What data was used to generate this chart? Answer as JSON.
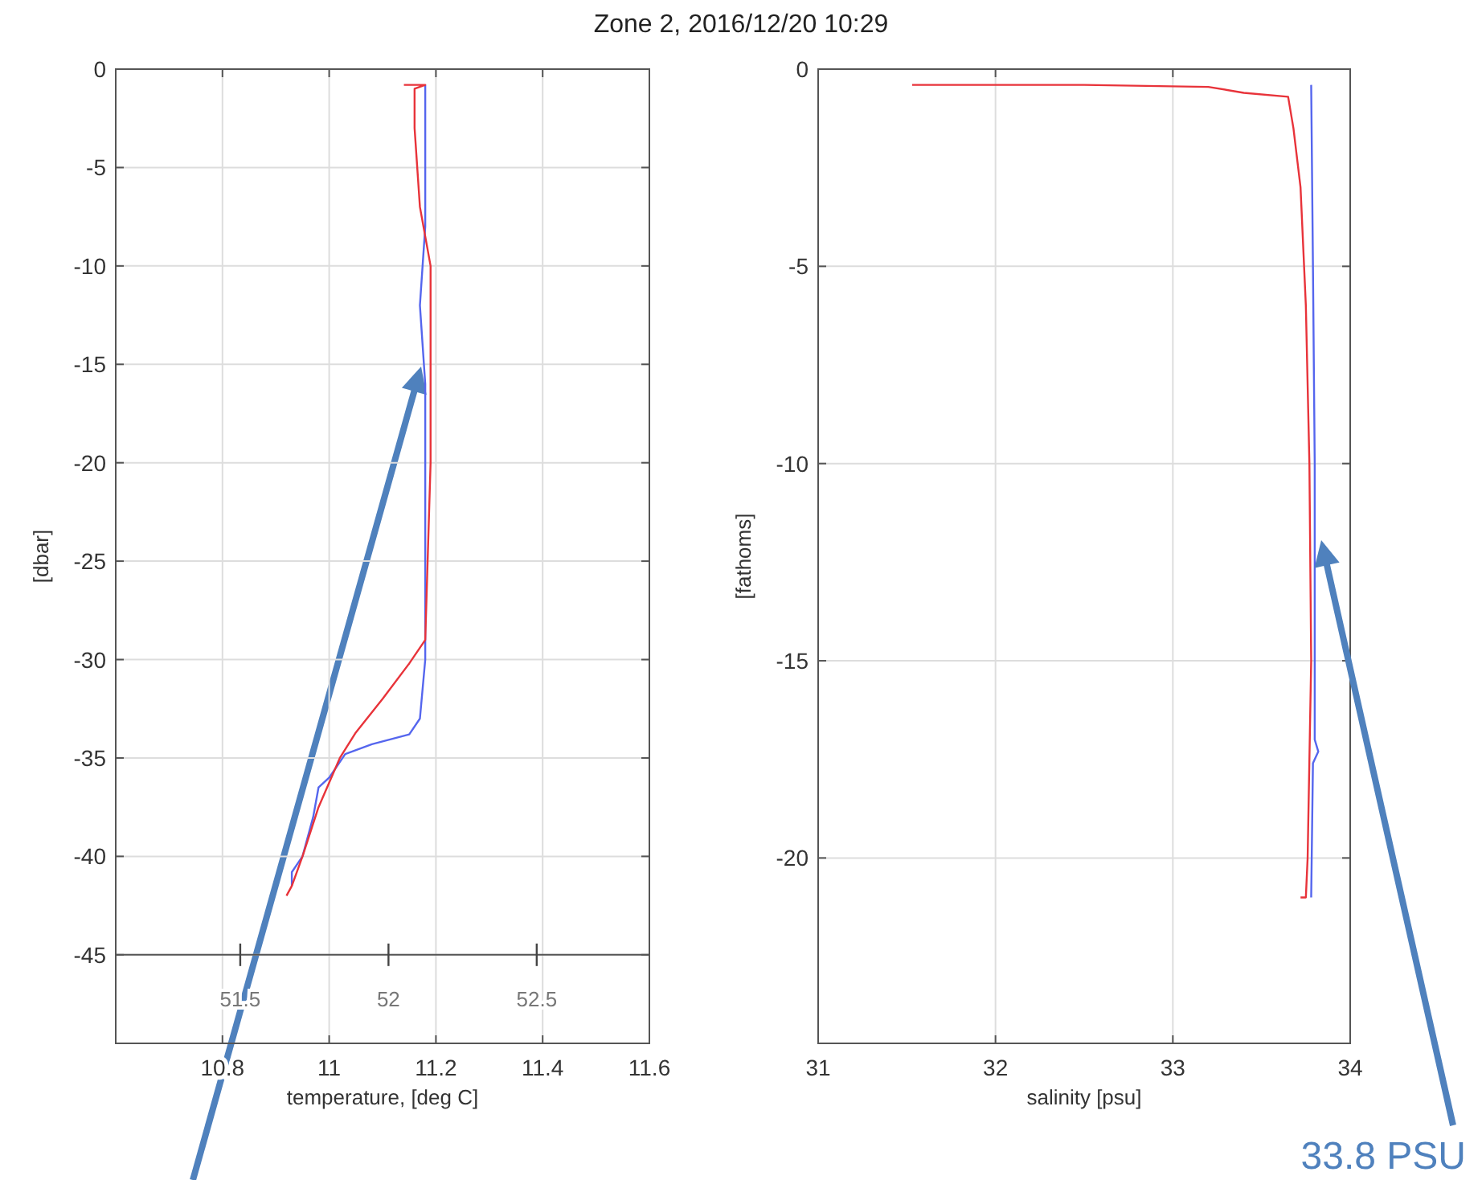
{
  "chart_data": [
    {
      "type": "line",
      "title": "Zone 2, 2016/12/20 10:29",
      "xlabel": "temperature, [deg C]",
      "ylabel": "[dbar]",
      "xlim": [
        10.6,
        11.6
      ],
      "xticks": [
        10.8,
        11,
        11.2,
        11.4,
        11.6
      ],
      "ylim": [
        -49.5,
        0
      ],
      "yticks": [
        0,
        -5,
        -10,
        -15,
        -20,
        -25,
        -30,
        -35,
        -40,
        -45
      ],
      "x2lim": [
        51.08,
        52.88
      ],
      "x2ticks": [
        51.5,
        52,
        52.5
      ],
      "grid": true,
      "line_style": "solid",
      "marker": "none",
      "series": [
        {
          "color": "#5566ee",
          "x": [
            11.18,
            11.18,
            11.17,
            11.18,
            11.18,
            11.18,
            11.17,
            11.15,
            11.08,
            11.03,
            11.0,
            10.98,
            10.97,
            10.95,
            10.93,
            10.93
          ],
          "values": [
            -0.8,
            -8,
            -12,
            -16,
            -25,
            -30,
            -33,
            -33.8,
            -34.3,
            -34.8,
            -36,
            -36.5,
            -38,
            -40,
            -40.8,
            -41.5
          ]
        },
        {
          "color": "#e8333a",
          "x": [
            11.14,
            11.18,
            11.16,
            11.16,
            11.17,
            11.19,
            11.19,
            11.18,
            11.15,
            11.1,
            11.05,
            11.02,
            10.98,
            10.95,
            10.93,
            10.92
          ],
          "values": [
            -0.8,
            -0.8,
            -1,
            -3,
            -7,
            -10,
            -20,
            -29,
            -30.2,
            -32,
            -33.7,
            -35,
            -37.5,
            -40,
            -41.5,
            -42
          ]
        }
      ]
    },
    {
      "type": "line",
      "xlabel": "salinity [psu]",
      "ylabel": "[fathoms]",
      "xlim": [
        31,
        34
      ],
      "xticks": [
        31,
        32,
        33,
        34
      ],
      "ylim": [
        -24.7,
        0
      ],
      "yticks": [
        0,
        -5,
        -10,
        -15,
        -20
      ],
      "grid": true,
      "line_style": "solid",
      "marker": "none",
      "annotations": [
        "33.8 PSU"
      ],
      "series": [
        {
          "color": "#5566ee",
          "x": [
            33.78,
            33.79,
            33.8,
            33.8,
            33.8,
            33.82,
            33.79,
            33.78
          ],
          "values": [
            -0.4,
            -5,
            -10,
            -15,
            -17,
            -17.3,
            -17.6,
            -21
          ]
        },
        {
          "color": "#e8333a",
          "x": [
            31.53,
            32.5,
            33.2,
            33.4,
            33.65,
            33.68,
            33.72,
            33.75,
            33.77,
            33.78,
            33.76,
            33.75,
            33.72
          ],
          "values": [
            -0.4,
            -0.4,
            -0.45,
            -0.6,
            -0.7,
            -1.5,
            -3,
            -6,
            -10,
            -15,
            -20,
            -21,
            -21
          ]
        }
      ]
    }
  ]
}
